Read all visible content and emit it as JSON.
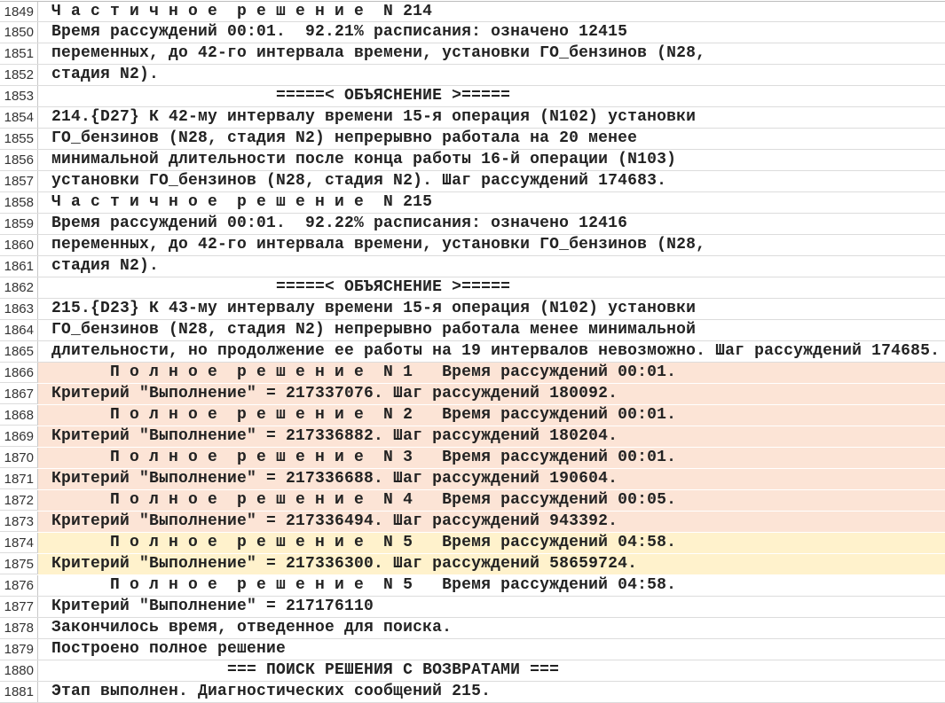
{
  "highlight_colors": {
    "peach": "#fce4d6",
    "yellow": "#fff2cc"
  },
  "lines": [
    {
      "n": "1849",
      "text": "Ч а с т и ч н о е  р е ш е н и е  N 214",
      "hl": ""
    },
    {
      "n": "1850",
      "text": "Время рассуждений 00:01.  92.21% расписания: означено 12415",
      "hl": ""
    },
    {
      "n": "1851",
      "text": "переменных, до 42-го интервала времени, установки ГО_бензинов (N28,",
      "hl": ""
    },
    {
      "n": "1852",
      "text": "стадия N2).",
      "hl": ""
    },
    {
      "n": "1853",
      "text": "                       =====< ОБЪЯСНЕНИЕ >=====",
      "hl": ""
    },
    {
      "n": "1854",
      "text": "214.{D27} К 42-му интервалу времени 15-я операция (N102) установки",
      "hl": ""
    },
    {
      "n": "1855",
      "text": "ГО_бензинов (N28, стадия N2) непрерывно работала на 20 менее",
      "hl": ""
    },
    {
      "n": "1856",
      "text": "минимальной длительности после конца работы 16-й операции (N103)",
      "hl": ""
    },
    {
      "n": "1857",
      "text": "установки ГО_бензинов (N28, стадия N2). Шаг рассуждений 174683.",
      "hl": ""
    },
    {
      "n": "1858",
      "text": "Ч а с т и ч н о е  р е ш е н и е  N 215",
      "hl": ""
    },
    {
      "n": "1859",
      "text": "Время рассуждений 00:01.  92.22% расписания: означено 12416",
      "hl": ""
    },
    {
      "n": "1860",
      "text": "переменных, до 42-го интервала времени, установки ГО_бензинов (N28,",
      "hl": ""
    },
    {
      "n": "1861",
      "text": "стадия N2).",
      "hl": ""
    },
    {
      "n": "1862",
      "text": "                       =====< ОБЪЯСНЕНИЕ >=====",
      "hl": ""
    },
    {
      "n": "1863",
      "text": "215.{D23} К 43-му интервалу времени 15-я операция (N102) установки",
      "hl": ""
    },
    {
      "n": "1864",
      "text": "ГО_бензинов (N28, стадия N2) непрерывно работала менее минимальной",
      "hl": ""
    },
    {
      "n": "1865",
      "text": "длительности, но продолжение ее работы на 19 интервалов невозможно. Шаг рассуждений 174685.",
      "hl": ""
    },
    {
      "n": "1866",
      "text": "      П о л н о е  р е ш е н и е  N 1   Время рассуждений 00:01.",
      "hl": "peach"
    },
    {
      "n": "1867",
      "text": "Критерий \"Выполнение\" = 217337076. Шаг рассуждений 180092.",
      "hl": "peach"
    },
    {
      "n": "1868",
      "text": "      П о л н о е  р е ш е н и е  N 2   Время рассуждений 00:01.",
      "hl": "peach"
    },
    {
      "n": "1869",
      "text": "Критерий \"Выполнение\" = 217336882. Шаг рассуждений 180204.",
      "hl": "peach"
    },
    {
      "n": "1870",
      "text": "      П о л н о е  р е ш е н и е  N 3   Время рассуждений 00:01.",
      "hl": "peach"
    },
    {
      "n": "1871",
      "text": "Критерий \"Выполнение\" = 217336688. Шаг рассуждений 190604.",
      "hl": "peach"
    },
    {
      "n": "1872",
      "text": "      П о л н о е  р е ш е н и е  N 4   Время рассуждений 00:05.",
      "hl": "peach"
    },
    {
      "n": "1873",
      "text": "Критерий \"Выполнение\" = 217336494. Шаг рассуждений 943392.",
      "hl": "peach"
    },
    {
      "n": "1874",
      "text": "      П о л н о е  р е ш е н и е  N 5   Время рассуждений 04:58.",
      "hl": "yellow"
    },
    {
      "n": "1875",
      "text": "Критерий \"Выполнение\" = 217336300. Шаг рассуждений 58659724.",
      "hl": "yellow"
    },
    {
      "n": "1876",
      "text": "      П о л н о е  р е ш е н и е  N 5   Время рассуждений 04:58.",
      "hl": ""
    },
    {
      "n": "1877",
      "text": "Критерий \"Выполнение\" = 217176110",
      "hl": ""
    },
    {
      "n": "1878",
      "text": "Закончилось время, отведенное для поиска.",
      "hl": ""
    },
    {
      "n": "1879",
      "text": "Построено полное решение",
      "hl": ""
    },
    {
      "n": "1880",
      "text": "                  === ПОИСК РЕШЕНИЯ С ВОЗВРАТАМИ ===",
      "hl": ""
    },
    {
      "n": "1881",
      "text": "Этап выполнен. Диагностических сообщений 215.",
      "hl": ""
    }
  ]
}
